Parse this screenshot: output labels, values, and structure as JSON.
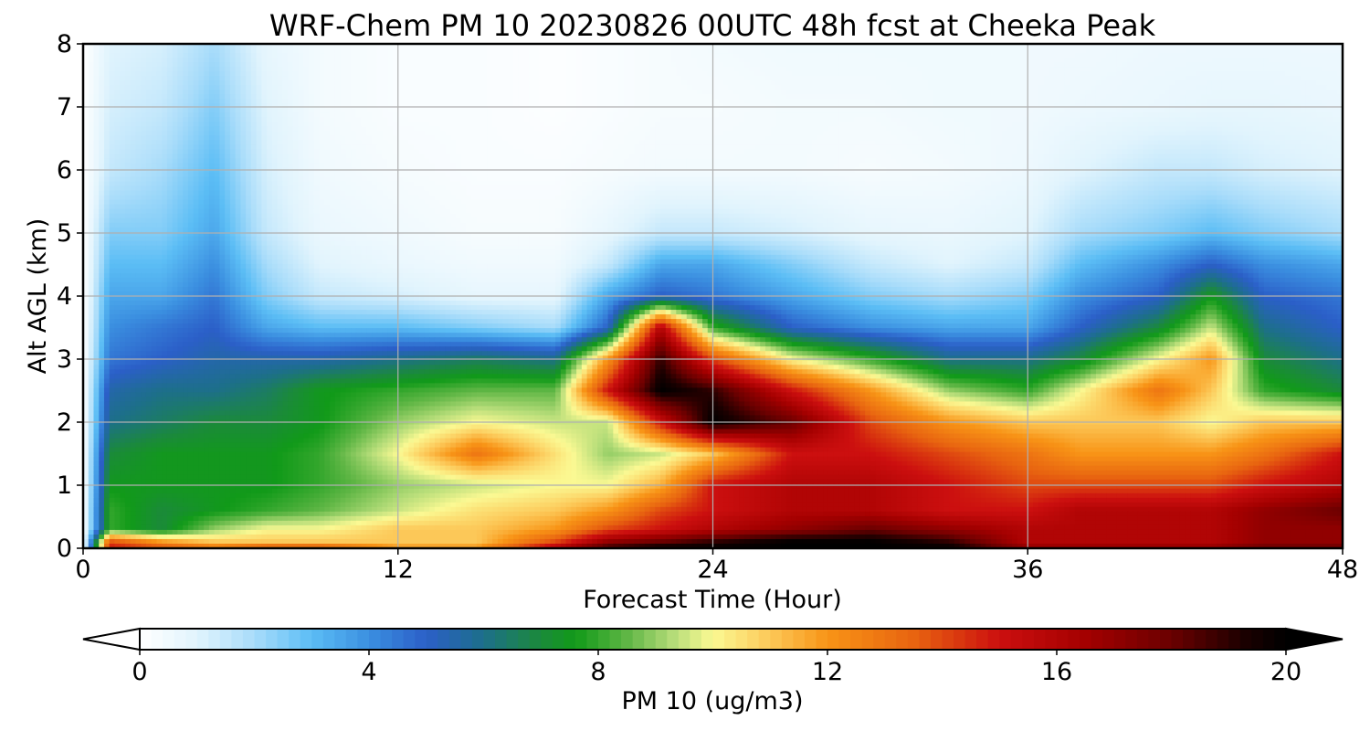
{
  "chart_data": {
    "type": "heatmap",
    "title": "WRF-Chem PM 10  20230826 00UTC 48h fcst at Cheeka Peak",
    "xlabel": "Forecast Time (Hour)",
    "ylabel": "Alt AGL (km)",
    "xlim": [
      0,
      48
    ],
    "ylim": [
      0,
      8
    ],
    "x_ticks": [
      "0",
      "12",
      "24",
      "36",
      "48"
    ],
    "y_ticks": [
      "0",
      "1",
      "2",
      "3",
      "4",
      "5",
      "6",
      "7",
      "8"
    ],
    "grid": true,
    "x_hours": [
      0,
      1,
      3,
      5,
      7,
      9,
      12,
      15,
      18,
      20,
      22,
      24,
      27,
      30,
      33,
      36,
      38,
      41,
      43,
      45,
      48
    ],
    "z_km": [
      0,
      0.1,
      0.3,
      0.6,
      1,
      1.5,
      2,
      2.5,
      3,
      3.5,
      4,
      4.5,
      5,
      6,
      7,
      8
    ],
    "pm10": [
      [
        0,
        15,
        14,
        13,
        14,
        14,
        12,
        12,
        16,
        19,
        20,
        20,
        20,
        20,
        20,
        17,
        17,
        17,
        17,
        18,
        18
      ],
      [
        0,
        14,
        12,
        11,
        11,
        11,
        11,
        11,
        14,
        17,
        18,
        19,
        20,
        20,
        19,
        16,
        16,
        16,
        16,
        17,
        17
      ],
      [
        0,
        8,
        7,
        9,
        10,
        10,
        11,
        11,
        12,
        14,
        15,
        16,
        17,
        18,
        17,
        16,
        16,
        16,
        16,
        17,
        17
      ],
      [
        0,
        8,
        7,
        7.5,
        8,
        8.5,
        9.5,
        10.5,
        11,
        12,
        14,
        15,
        16,
        16,
        15,
        15,
        16,
        16,
        16,
        17,
        18
      ],
      [
        0,
        7.5,
        7.5,
        7.5,
        7.5,
        8,
        9,
        9.5,
        10,
        10,
        11.5,
        15,
        16,
        16,
        15,
        14,
        14,
        14,
        14,
        15,
        16
      ],
      [
        0,
        7,
        7.5,
        7.5,
        7.5,
        8,
        10,
        13,
        10.5,
        9,
        9.5,
        11,
        15,
        15,
        14,
        13,
        12,
        12,
        12,
        13,
        15
      ],
      [
        0,
        6,
        6.5,
        7,
        7,
        7.5,
        9,
        10,
        9.5,
        9.5,
        15,
        20,
        18,
        14,
        12,
        11,
        11,
        11,
        10,
        11,
        11
      ],
      [
        0,
        5.5,
        6,
        6,
        6.5,
        7.5,
        8,
        8.5,
        8.5,
        15,
        20,
        19,
        15,
        12,
        9,
        8,
        10,
        13,
        11,
        8,
        7
      ],
      [
        0,
        4.5,
        5,
        5.5,
        5.5,
        5.5,
        6,
        6.5,
        6,
        12,
        19,
        14,
        10,
        8,
        6,
        6,
        7,
        10,
        12,
        7,
        6
      ],
      [
        0,
        4,
        4.5,
        5,
        3.5,
        3,
        3,
        2.5,
        2,
        5,
        16,
        8,
        5,
        4,
        3.5,
        3.5,
        5,
        7,
        9.5,
        6,
        5
      ],
      [
        0,
        3.5,
        3.5,
        4.5,
        2.5,
        1.5,
        1.2,
        0.8,
        0.8,
        3.5,
        5,
        4.5,
        3.5,
        2.5,
        2,
        2.5,
        4,
        5,
        7.5,
        5,
        4.5
      ],
      [
        0,
        3,
        3,
        4,
        2,
        1,
        0.7,
        0.5,
        0.5,
        1.5,
        3.5,
        3.5,
        2.5,
        1.5,
        1,
        1.5,
        3,
        4,
        5,
        4,
        3.5
      ],
      [
        0,
        2.5,
        2.5,
        3.5,
        1.5,
        0.7,
        0.5,
        0.3,
        0.3,
        0.8,
        1.5,
        1.5,
        1.2,
        0.8,
        0.7,
        1,
        2,
        2.5,
        3,
        2.5,
        2
      ],
      [
        0,
        1.5,
        2,
        3,
        1.2,
        0.5,
        0.3,
        0.2,
        0.2,
        0.3,
        0.4,
        0.4,
        0.4,
        0.3,
        0.4,
        0.6,
        1,
        1.5,
        1.5,
        1.2,
        1
      ],
      [
        0,
        1.2,
        1.5,
        2.5,
        1,
        0.4,
        0.2,
        0.2,
        0.1,
        0.2,
        0.3,
        0.3,
        0.4,
        0.4,
        0.5,
        0.5,
        0.6,
        0.7,
        0.8,
        0.8,
        0.7
      ],
      [
        0,
        1,
        1.2,
        2,
        0.8,
        0.4,
        0.2,
        0.2,
        0.1,
        0.2,
        0.3,
        0.4,
        0.5,
        0.5,
        0.5,
        0.5,
        0.5,
        0.6,
        0.6,
        0.6,
        0.6
      ]
    ],
    "colorbar": {
      "label": "PM 10  (ug/m3)",
      "ticks": [
        "0",
        "4",
        "8",
        "12",
        "16",
        "20"
      ],
      "range": [
        0,
        20
      ],
      "extend": "both",
      "stops": [
        {
          "v": 0,
          "c": "#ffffff"
        },
        {
          "v": 1,
          "c": "#e1f4fd"
        },
        {
          "v": 2,
          "c": "#a8dcfa"
        },
        {
          "v": 3,
          "c": "#5bbdf5"
        },
        {
          "v": 4,
          "c": "#3b8fe0"
        },
        {
          "v": 5,
          "c": "#2b5fc8"
        },
        {
          "v": 6,
          "c": "#1d6f8a"
        },
        {
          "v": 7,
          "c": "#1b8a3a"
        },
        {
          "v": 7.6,
          "c": "#119a19"
        },
        {
          "v": 8.5,
          "c": "#5fb645"
        },
        {
          "v": 9.3,
          "c": "#b4dc78"
        },
        {
          "v": 10,
          "c": "#fbf993"
        },
        {
          "v": 11,
          "c": "#fcc858"
        },
        {
          "v": 12,
          "c": "#f89416"
        },
        {
          "v": 13.5,
          "c": "#e86410"
        },
        {
          "v": 15,
          "c": "#cc0f0f"
        },
        {
          "v": 16.5,
          "c": "#a40000"
        },
        {
          "v": 18,
          "c": "#6a0000"
        },
        {
          "v": 19.3,
          "c": "#1a0000"
        },
        {
          "v": 20,
          "c": "#000000"
        }
      ],
      "under_color": "#ffffff",
      "over_color": "#000000"
    },
    "colors": {
      "grid": "#b0b0b0",
      "frame": "#000000"
    }
  }
}
